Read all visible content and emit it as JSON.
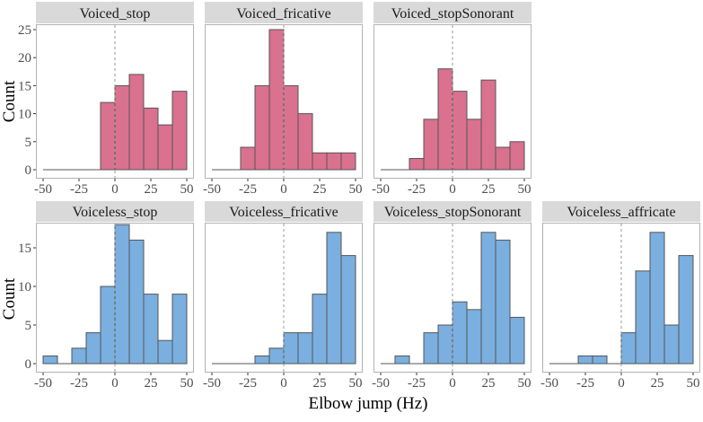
{
  "chart_data": {
    "type": "bar",
    "subtype": "faceted-histogram",
    "xlabel": "Elbow jump (Hz)",
    "ylabel": "Count",
    "bin_edges": [
      -50,
      -40,
      -30,
      -20,
      -10,
      0,
      10,
      20,
      30,
      40,
      50
    ],
    "x_ticks": [
      "-50",
      "-25",
      "0",
      "25",
      "50"
    ],
    "x_tick_values": [
      -50,
      -25,
      0,
      25,
      50
    ],
    "reference_line_x": 0,
    "rows": [
      {
        "color": "#d9718f",
        "ylim": [
          0,
          26.5
        ],
        "y_ticks": [
          "0",
          "5",
          "10",
          "15",
          "20",
          "25"
        ],
        "y_tick_values": [
          0,
          5,
          10,
          15,
          20,
          25
        ],
        "panels": [
          {
            "title": "Voiced_stop",
            "values": [
              0,
              0,
              0,
              0,
              12,
              15,
              17,
              11,
              8,
              14
            ]
          },
          {
            "title": "Voiced_fricative",
            "values": [
              0,
              0,
              4,
              15,
              25,
              15,
              10,
              3,
              3,
              3
            ]
          },
          {
            "title": "Voiced_stopSonorant",
            "values": [
              0,
              0,
              2,
              9,
              18,
              14,
              9,
              16,
              4,
              5
            ]
          }
        ]
      },
      {
        "color": "#7aafe0",
        "ylim": [
          0,
          18.9
        ],
        "y_ticks": [
          "0",
          "5",
          "10",
          "15"
        ],
        "y_tick_values": [
          0,
          5,
          10,
          15
        ],
        "panels": [
          {
            "title": "Voiceless_stop",
            "values": [
              1,
              0,
              2,
              4,
              10,
              18,
              16,
              9,
              3,
              9
            ]
          },
          {
            "title": "Voiceless_fricative",
            "values": [
              0,
              0,
              0,
              1,
              2,
              4,
              4,
              9,
              17,
              14
            ]
          },
          {
            "title": "Voiceless_stopSonorant",
            "values": [
              0,
              1,
              0,
              4,
              5,
              8,
              7,
              17,
              16,
              6
            ]
          },
          {
            "title": "Voiceless_affricate",
            "values": [
              0,
              0,
              1,
              1,
              0,
              4,
              12,
              17,
              5,
              14
            ]
          }
        ]
      }
    ]
  }
}
